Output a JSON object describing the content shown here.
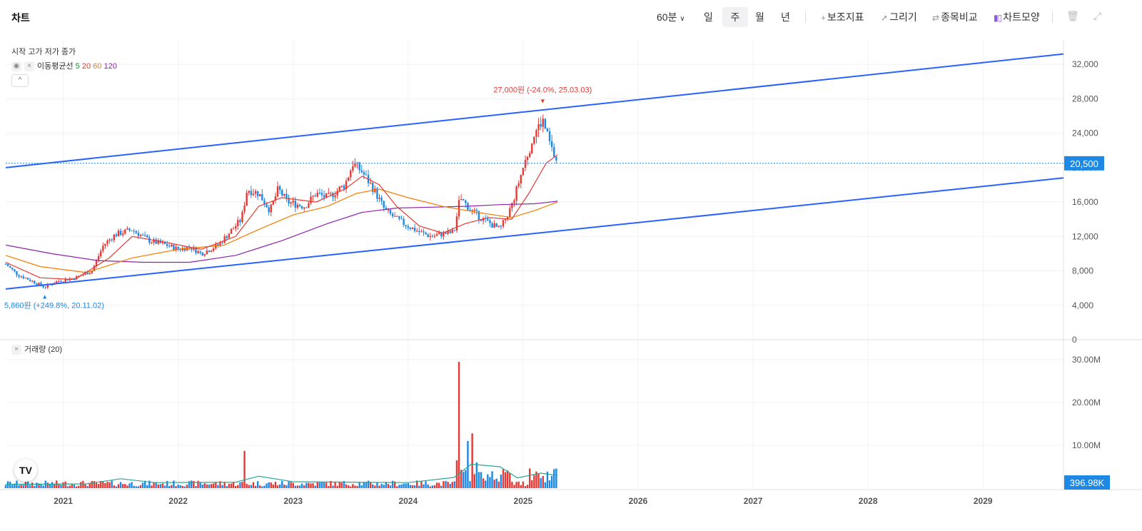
{
  "app": {
    "title": "차트"
  },
  "toolbar": {
    "interval_label": "60분",
    "periods": [
      "일",
      "주",
      "월",
      "년"
    ],
    "active_period": "주",
    "indicators_label": "보조지표",
    "draw_label": "그리기",
    "compare_label": "종목비교",
    "chart_type_label": "차트모양"
  },
  "legend": {
    "ohlc_label": "시작 고가 저가 종가",
    "ma_label": "이동평균선",
    "ma5": "5",
    "ma20": "20",
    "ma60": "60",
    "ma120": "120",
    "volume_label": "거래량 (20)"
  },
  "colors": {
    "up": "#e53935",
    "down": "#1e88e5",
    "ma5": "#1f8f3a",
    "ma20": "#e53935",
    "ma60": "#f57c00",
    "ma120": "#8e24aa",
    "trend": "#2962ff",
    "last_price": "#1e88e5"
  },
  "chart_data": [
    {
      "type": "candlestick",
      "yticks": [
        "32,000",
        "28,000",
        "24,000",
        "20,000",
        "16,000",
        "12,000",
        "8,000",
        "4,000",
        "0"
      ],
      "ylim": [
        0,
        34000
      ],
      "xticks": [
        "2021",
        "2022",
        "2023",
        "2024",
        "2025",
        "2026",
        "2027",
        "2028",
        "2029"
      ],
      "current_price_label": "20,500",
      "current_price": 20500,
      "high_annotation": "27,000원 (-24.0%, 25.03.03)",
      "high": {
        "date": 2025.17,
        "value": 27000
      },
      "low_annotation": "5,860원 (+249.8%, 20.11.02)",
      "low": {
        "date": 2020.84,
        "value": 5860
      },
      "trend_lines": [
        {
          "x1": 2020.5,
          "y1": 20000,
          "x2": 2029.7,
          "y2": 33200
        },
        {
          "x1": 2020.5,
          "y1": 5900,
          "x2": 2029.7,
          "y2": 18800
        }
      ],
      "price_path": [
        [
          2020.5,
          8800
        ],
        [
          2020.6,
          7600
        ],
        [
          2020.7,
          7000
        ],
        [
          2020.84,
          6100
        ],
        [
          2020.95,
          6800
        ],
        [
          2021.1,
          7200
        ],
        [
          2021.25,
          8000
        ],
        [
          2021.35,
          11000
        ],
        [
          2021.45,
          12200
        ],
        [
          2021.6,
          12800
        ],
        [
          2021.75,
          11500
        ],
        [
          2021.9,
          11000
        ],
        [
          2022.0,
          10500
        ],
        [
          2022.1,
          10800
        ],
        [
          2022.2,
          10000
        ],
        [
          2022.35,
          11000
        ],
        [
          2022.45,
          12500
        ],
        [
          2022.55,
          14000
        ],
        [
          2022.6,
          17500
        ],
        [
          2022.7,
          17000
        ],
        [
          2022.8,
          15000
        ],
        [
          2022.87,
          17500
        ],
        [
          2022.95,
          16000
        ],
        [
          2023.1,
          15500
        ],
        [
          2023.2,
          17000
        ],
        [
          2023.3,
          16500
        ],
        [
          2023.45,
          18000
        ],
        [
          2023.52,
          20500
        ],
        [
          2023.6,
          19500
        ],
        [
          2023.7,
          17500
        ],
        [
          2023.8,
          15000
        ],
        [
          2023.9,
          14000
        ],
        [
          2024.0,
          13200
        ],
        [
          2024.1,
          12500
        ],
        [
          2024.2,
          12000
        ],
        [
          2024.3,
          12300
        ],
        [
          2024.4,
          12500
        ],
        [
          2024.45,
          16500
        ],
        [
          2024.55,
          15000
        ],
        [
          2024.65,
          14000
        ],
        [
          2024.8,
          12800
        ],
        [
          2024.9,
          15500
        ],
        [
          2025.0,
          20000
        ],
        [
          2025.1,
          24000
        ],
        [
          2025.17,
          25500
        ],
        [
          2025.25,
          22000
        ],
        [
          2025.3,
          20500
        ]
      ],
      "ma20": [
        [
          2020.5,
          9000
        ],
        [
          2020.8,
          7200
        ],
        [
          2021.1,
          7000
        ],
        [
          2021.4,
          9500
        ],
        [
          2021.6,
          12000
        ],
        [
          2021.9,
          11300
        ],
        [
          2022.2,
          10500
        ],
        [
          2022.5,
          12000
        ],
        [
          2022.7,
          15500
        ],
        [
          2022.9,
          16500
        ],
        [
          2023.2,
          16000
        ],
        [
          2023.45,
          17500
        ],
        [
          2023.6,
          19000
        ],
        [
          2023.75,
          18000
        ],
        [
          2023.9,
          15500
        ],
        [
          2024.1,
          13200
        ],
        [
          2024.3,
          12400
        ],
        [
          2024.5,
          13500
        ],
        [
          2024.7,
          14200
        ],
        [
          2024.9,
          14000
        ],
        [
          2025.05,
          17000
        ],
        [
          2025.2,
          20500
        ],
        [
          2025.3,
          21500
        ]
      ],
      "ma60": [
        [
          2020.5,
          9800
        ],
        [
          2020.8,
          8500
        ],
        [
          2021.2,
          7800
        ],
        [
          2021.6,
          9500
        ],
        [
          2022.0,
          10500
        ],
        [
          2022.4,
          11000
        ],
        [
          2022.7,
          12800
        ],
        [
          2023.0,
          14500
        ],
        [
          2023.3,
          15500
        ],
        [
          2023.55,
          17000
        ],
        [
          2023.75,
          17500
        ],
        [
          2024.0,
          16500
        ],
        [
          2024.3,
          15500
        ],
        [
          2024.6,
          14800
        ],
        [
          2024.9,
          14200
        ],
        [
          2025.1,
          15000
        ],
        [
          2025.3,
          16000
        ]
      ],
      "ma120": [
        [
          2020.5,
          11000
        ],
        [
          2020.9,
          10000
        ],
        [
          2021.3,
          9200
        ],
        [
          2021.7,
          9000
        ],
        [
          2022.1,
          9000
        ],
        [
          2022.5,
          9800
        ],
        [
          2022.9,
          11500
        ],
        [
          2023.3,
          13500
        ],
        [
          2023.6,
          14800
        ],
        [
          2023.9,
          15300
        ],
        [
          2024.2,
          15400
        ],
        [
          2024.5,
          15500
        ],
        [
          2024.8,
          15700
        ],
        [
          2025.1,
          15800
        ],
        [
          2025.3,
          16100
        ]
      ]
    },
    {
      "type": "bar",
      "series_label": "거래량 (20)",
      "yticks": [
        "30.00M",
        "20.00M",
        "10.00M"
      ],
      "ylim": [
        0,
        33000000
      ],
      "current_volume_label": "396.98K",
      "spikes": [
        {
          "date": 2022.58,
          "value": 8700000
        },
        {
          "date": 2024.43,
          "value": 6500000
        },
        {
          "date": 2024.45,
          "value": 29500000
        },
        {
          "date": 2024.52,
          "value": 11000000
        },
        {
          "date": 2024.55,
          "value": 12800000
        },
        {
          "date": 2024.6,
          "value": 6000000
        }
      ],
      "ma_path": [
        [
          2020.5,
          900000
        ],
        [
          2021.2,
          1000000
        ],
        [
          2021.5,
          2200000
        ],
        [
          2021.8,
          1300000
        ],
        [
          2022.5,
          1400000
        ],
        [
          2022.7,
          2800000
        ],
        [
          2023.0,
          1500000
        ],
        [
          2024.0,
          1300000
        ],
        [
          2024.4,
          2500000
        ],
        [
          2024.55,
          5600000
        ],
        [
          2024.8,
          5000000
        ],
        [
          2024.95,
          2400000
        ],
        [
          2025.15,
          3500000
        ],
        [
          2025.3,
          3000000
        ]
      ]
    }
  ]
}
